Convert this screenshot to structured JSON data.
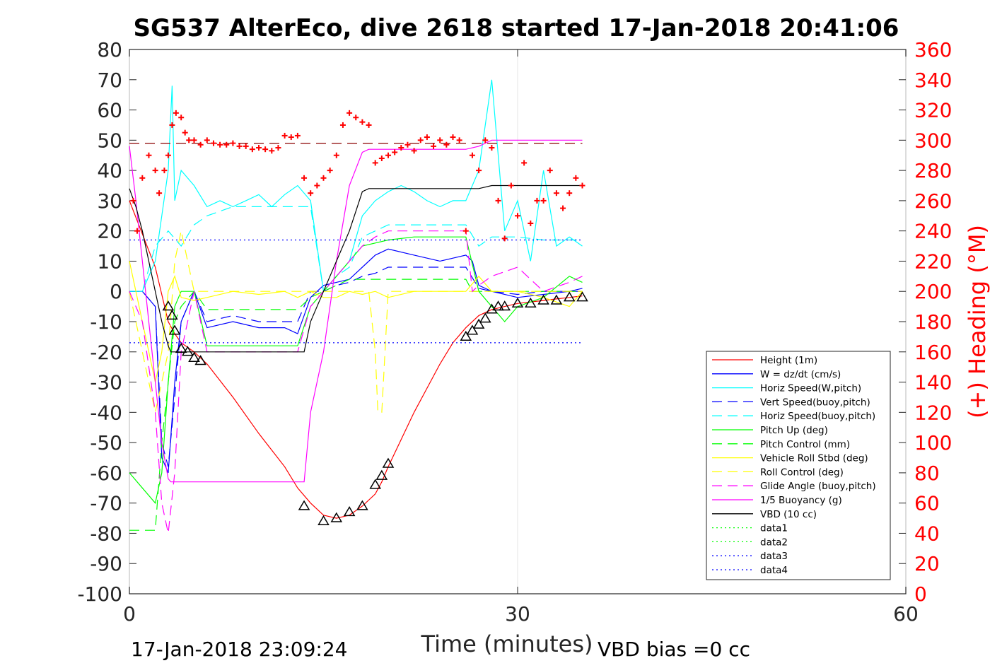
{
  "chart_data": {
    "type": "line",
    "title": "SG537 AlterEco, dive 2618 started 17-Jan-2018 20:41:06",
    "xlabel": "Time (minutes)",
    "ylabel_right": "(+) Heading (°M)",
    "xlim": [
      0,
      60
    ],
    "ylim_left": [
      -100,
      80
    ],
    "ylim_right": [
      0,
      360
    ],
    "x_ticks": [
      "0",
      "30",
      "60"
    ],
    "y_ticks_left": [
      "80",
      "70",
      "60",
      "50",
      "40",
      "30",
      "20",
      "10",
      "0",
      "-10",
      "-20",
      "-30",
      "-40",
      "-50",
      "-60",
      "-70",
      "-80",
      "-90",
      "-100"
    ],
    "y_ticks_right": [
      "360",
      "340",
      "320",
      "300",
      "280",
      "260",
      "240",
      "220",
      "200",
      "180",
      "160",
      "140",
      "120",
      "100",
      "80",
      "60",
      "40",
      "20",
      "0"
    ],
    "grid": "x-only",
    "legend_position": "bottom-right",
    "footer_left": "17-Jan-2018 23:09:24",
    "footer_right": "VBD bias =0 cc",
    "series": [
      {
        "name": "Height (1m)",
        "color": "#ff0000",
        "style": "solid",
        "x": [
          0,
          2,
          3,
          3.5,
          4,
          5,
          6,
          8,
          10,
          12,
          13,
          14,
          15,
          16,
          17,
          18,
          19,
          19.5,
          20,
          21,
          22,
          23,
          24,
          25,
          26,
          27,
          28,
          29,
          30,
          31,
          32,
          33,
          34,
          35
        ],
        "y": [
          30,
          8,
          -10,
          -14,
          -17,
          -20,
          -24,
          -35,
          -47,
          -58,
          -65,
          -70,
          -74,
          -75,
          -74,
          -71,
          -67,
          -63,
          -58,
          -49,
          -40,
          -32,
          -24,
          -17,
          -12,
          -8,
          -6,
          -5,
          -4,
          -3.5,
          -3,
          -2.5,
          -2,
          -1.5
        ]
      },
      {
        "name": "W = dz/dt (cm/s)",
        "color": "#0000ff",
        "style": "solid",
        "x": [
          0,
          1,
          2,
          2.5,
          3,
          3.5,
          4,
          5,
          6,
          8,
          10,
          12,
          13,
          14,
          15,
          16,
          17,
          18,
          19,
          20,
          22,
          24,
          25,
          26,
          26.5,
          27,
          28,
          30,
          32,
          34,
          35
        ],
        "y": [
          0,
          0,
          -5,
          -55,
          -60,
          -30,
          -10,
          0,
          -12,
          -10,
          -12,
          -12,
          -14,
          -2,
          2,
          3,
          4,
          8,
          12,
          14,
          12,
          10,
          11,
          12,
          10,
          2,
          0,
          -2,
          -1,
          0,
          1
        ]
      },
      {
        "name": "Horiz Speed(W,pitch)",
        "color": "#00ffff",
        "style": "solid",
        "x": [
          0,
          1,
          2,
          2.5,
          3,
          3.3,
          3.5,
          4,
          5,
          6,
          7,
          8,
          9,
          10,
          11,
          12,
          13,
          14,
          15,
          16,
          17,
          18,
          19,
          20,
          21,
          22,
          23,
          24,
          25,
          26,
          27,
          28,
          29,
          30,
          31,
          32,
          33,
          34,
          35
        ],
        "y": [
          0,
          0,
          10,
          25,
          40,
          68,
          30,
          40,
          35,
          28,
          30,
          28,
          30,
          32,
          28,
          32,
          35,
          30,
          0,
          5,
          10,
          25,
          30,
          33,
          35,
          33,
          30,
          28,
          30,
          30,
          40,
          70,
          20,
          30,
          10,
          40,
          15,
          18,
          15
        ]
      },
      {
        "name": "Vert Speed(buoy,pitch)",
        "color": "#0000ff",
        "style": "dashed",
        "x": [
          0,
          1,
          2,
          2.5,
          3,
          3.5,
          4,
          5,
          6,
          8,
          10,
          12,
          13,
          14,
          15,
          16,
          17,
          18,
          19,
          20,
          22,
          24,
          26,
          27,
          28,
          30,
          32,
          34,
          35
        ],
        "y": [
          0,
          0,
          -5,
          -50,
          -58,
          -35,
          -10,
          0,
          -10,
          -8,
          -10,
          -10,
          -10,
          0,
          0,
          2,
          3,
          5,
          6,
          8,
          8,
          8,
          8,
          1,
          0,
          -1,
          0,
          0,
          0
        ]
      },
      {
        "name": "Horiz Speed(buoy,pitch)",
        "color": "#00ffff",
        "style": "dashed",
        "x": [
          0,
          1,
          2,
          3,
          4,
          5,
          6,
          8,
          10,
          12,
          13,
          14,
          15,
          16,
          17,
          18,
          19,
          20,
          22,
          24,
          26,
          27,
          28,
          30,
          32,
          34,
          35
        ],
        "y": [
          0,
          0,
          15,
          20,
          15,
          22,
          25,
          28,
          28,
          28,
          28,
          28,
          0,
          5,
          8,
          18,
          20,
          22,
          22,
          22,
          22,
          15,
          18,
          18,
          17,
          17,
          17
        ]
      },
      {
        "name": "Pitch Up (deg)",
        "color": "#00ff00",
        "style": "solid",
        "x": [
          0,
          1,
          2,
          2.5,
          3,
          3.5,
          4,
          5,
          6,
          8,
          10,
          12,
          13,
          14,
          15,
          16,
          17,
          18,
          19,
          20,
          22,
          24,
          26,
          27,
          28,
          29,
          30,
          32,
          34,
          35
        ],
        "y": [
          -60,
          -65,
          -70,
          -60,
          -30,
          -5,
          0,
          0,
          -18,
          -18,
          -18,
          -18,
          -18,
          -5,
          0,
          5,
          10,
          15,
          16,
          17,
          18,
          18,
          18,
          0,
          -5,
          -10,
          -5,
          -2,
          5,
          3
        ]
      },
      {
        "name": "Pitch Control (mm)",
        "color": "#00ff00",
        "style": "dashed",
        "x": [
          0,
          1,
          2,
          2.5,
          3,
          3.5,
          4,
          5,
          6,
          8,
          10,
          12,
          13,
          14,
          15,
          16,
          17,
          18,
          19,
          20,
          22,
          24,
          26,
          26.5,
          27,
          35
        ],
        "y": [
          -79,
          -79,
          -79,
          -50,
          -30,
          -10,
          -5,
          0,
          -6,
          -6,
          -6,
          -6,
          -6,
          -2,
          0,
          2,
          4,
          4,
          4,
          4,
          4,
          4,
          4,
          0,
          0,
          0
        ]
      },
      {
        "name": "Vehicle Roll Stbd (deg)",
        "color": "#ffff00",
        "style": "solid",
        "x": [
          0,
          1,
          2,
          2.5,
          3,
          3.5,
          4,
          5,
          6,
          8,
          10,
          12,
          13,
          14,
          15,
          16,
          17,
          18,
          19,
          20,
          22,
          24,
          26,
          27,
          28,
          30,
          32,
          34,
          35
        ],
        "y": [
          10,
          -10,
          -30,
          -20,
          0,
          5,
          -2,
          -3,
          -2,
          0,
          -1,
          0,
          -2,
          0,
          -2,
          -2,
          0,
          -1,
          0,
          -2,
          0,
          0,
          0,
          5,
          0,
          0,
          -2,
          -5,
          0
        ]
      },
      {
        "name": "Roll Control (deg)",
        "color": "#ffff00",
        "style": "dashed",
        "x": [
          0,
          1,
          2,
          2.5,
          3,
          3.5,
          4,
          5,
          6,
          8,
          10,
          12,
          14,
          15,
          16,
          17,
          18,
          18.5,
          19,
          19.2,
          19.5,
          20,
          22,
          24,
          26,
          27,
          28,
          30,
          35
        ],
        "y": [
          0,
          -20,
          -40,
          -30,
          -20,
          10,
          20,
          0,
          0,
          0,
          0,
          0,
          0,
          0,
          0,
          0,
          0,
          0,
          -20,
          -40,
          -40,
          0,
          0,
          0,
          0,
          0,
          0,
          0,
          0
        ]
      },
      {
        "name": "Glide Angle (buoy,pitch)",
        "color": "#ff00ff",
        "style": "dashed",
        "x": [
          0,
          1,
          2,
          2.5,
          3,
          3.5,
          4,
          5,
          6,
          8,
          10,
          12,
          13,
          14,
          15,
          16,
          17,
          18,
          19,
          20,
          22,
          24,
          26,
          26.5,
          27,
          28,
          30,
          32,
          34,
          35
        ],
        "y": [
          0,
          -10,
          -40,
          -70,
          -80,
          -60,
          -20,
          0,
          -20,
          -20,
          -20,
          -20,
          -20,
          -5,
          0,
          5,
          10,
          15,
          18,
          20,
          20,
          20,
          20,
          0,
          2,
          5,
          8,
          0,
          3,
          5
        ]
      },
      {
        "name": "1/5 Buoyancy (g)",
        "color": "#ff00ff",
        "style": "solid",
        "x": [
          0,
          0.5,
          1,
          1.5,
          2,
          2.5,
          3,
          3.2,
          4,
          6,
          8,
          10,
          12,
          13,
          13.5,
          14,
          15,
          16,
          17,
          18,
          18.5,
          19,
          22,
          24,
          26,
          27,
          28,
          30,
          32,
          34,
          35
        ],
        "y": [
          48,
          30,
          10,
          -10,
          -30,
          -50,
          -62,
          -63,
          -63,
          -63,
          -63,
          -63,
          -63,
          -63,
          -63,
          -40,
          -20,
          10,
          35,
          46,
          47,
          47,
          47,
          47,
          47,
          48,
          50,
          50,
          50,
          50,
          50
        ]
      },
      {
        "name": "VBD (10 cc)",
        "color": "#000000",
        "style": "solid",
        "x": [
          0,
          0.5,
          1,
          1.5,
          2,
          2.5,
          3,
          3.2,
          4,
          6,
          8,
          10,
          12,
          13,
          13.5,
          14,
          15,
          16,
          17,
          18,
          18.5,
          19,
          22,
          24,
          26,
          27,
          28,
          30,
          32,
          34,
          35
        ],
        "y": [
          34,
          28,
          20,
          10,
          0,
          -10,
          -18,
          -20,
          -20,
          -20,
          -20,
          -20,
          -20,
          -20,
          -20,
          -10,
          0,
          10,
          20,
          33,
          34,
          34,
          34,
          34,
          34,
          34,
          35,
          35,
          35,
          35,
          35
        ]
      },
      {
        "name": "data1",
        "color": "#00ff00",
        "style": "dotted",
        "x": [],
        "y": []
      },
      {
        "name": "data2",
        "color": "#00ff00",
        "style": "dotted",
        "x": [],
        "y": []
      },
      {
        "name": "data3",
        "color": "#0000ff",
        "style": "dotted",
        "x": [
          0,
          35
        ],
        "y": [
          17,
          17
        ]
      },
      {
        "name": "data4",
        "color": "#0000ff",
        "style": "dotted",
        "x": [
          0,
          35
        ],
        "y": [
          -17,
          -17
        ]
      }
    ],
    "reference_line": {
      "color": "#8b0000",
      "style": "dashed",
      "x": [
        0,
        35
      ],
      "y": [
        49,
        49
      ]
    },
    "heading_points": {
      "color": "#ff0000",
      "x": [
        0.3,
        0.6,
        1,
        1.5,
        2,
        2.3,
        2.7,
        3,
        3.3,
        3.6,
        4,
        4.3,
        4.6,
        5,
        5.5,
        6,
        6.5,
        7,
        7.5,
        8,
        8.5,
        9,
        9.5,
        10,
        10.5,
        11,
        11.5,
        12,
        12.5,
        13,
        13.5,
        14,
        14.5,
        15,
        15.5,
        16,
        16.5,
        17,
        17.5,
        18,
        18.5,
        19,
        19.5,
        20,
        20.5,
        21,
        21.5,
        22,
        22.5,
        23,
        23.5,
        24,
        24.5,
        25,
        25.5,
        26,
        26.5,
        27,
        27.5,
        28,
        28.5,
        29,
        29.5,
        30,
        30.5,
        31,
        31.5,
        32,
        32.5,
        33,
        33.5,
        34,
        34.5,
        35
      ],
      "y": [
        260,
        240,
        275,
        290,
        280,
        265,
        280,
        290,
        310,
        318,
        315,
        305,
        300,
        300,
        297,
        300,
        298,
        297,
        297,
        298,
        296,
        296,
        294,
        295,
        294,
        293,
        295,
        303,
        302,
        303,
        275,
        265,
        270,
        275,
        280,
        290,
        310,
        318,
        315,
        312,
        310,
        285,
        288,
        290,
        292,
        295,
        297,
        293,
        300,
        302,
        296,
        300,
        297,
        302,
        300,
        240,
        290,
        280,
        300,
        295,
        260,
        235,
        270,
        250,
        285,
        245,
        260,
        260,
        280,
        265,
        255,
        265,
        275,
        270
      ]
    },
    "markers": {
      "color": "#000000",
      "x": [
        3,
        3.3,
        3.5,
        4,
        4.5,
        5,
        5.5,
        13.5,
        15,
        16,
        17,
        18,
        19,
        19.5,
        20,
        26,
        26.5,
        27,
        27.5,
        28,
        28.5,
        29,
        30,
        31,
        32,
        33,
        34,
        35
      ],
      "y": [
        -5,
        -8,
        -13,
        -19,
        -20,
        -22,
        -23,
        -71,
        -76,
        -75,
        -73,
        -71,
        -64,
        -61,
        -57,
        -15,
        -13,
        -11,
        -9,
        -6,
        -5,
        -5,
        -4,
        -4,
        -3,
        -3,
        -2,
        -2
      ]
    }
  }
}
